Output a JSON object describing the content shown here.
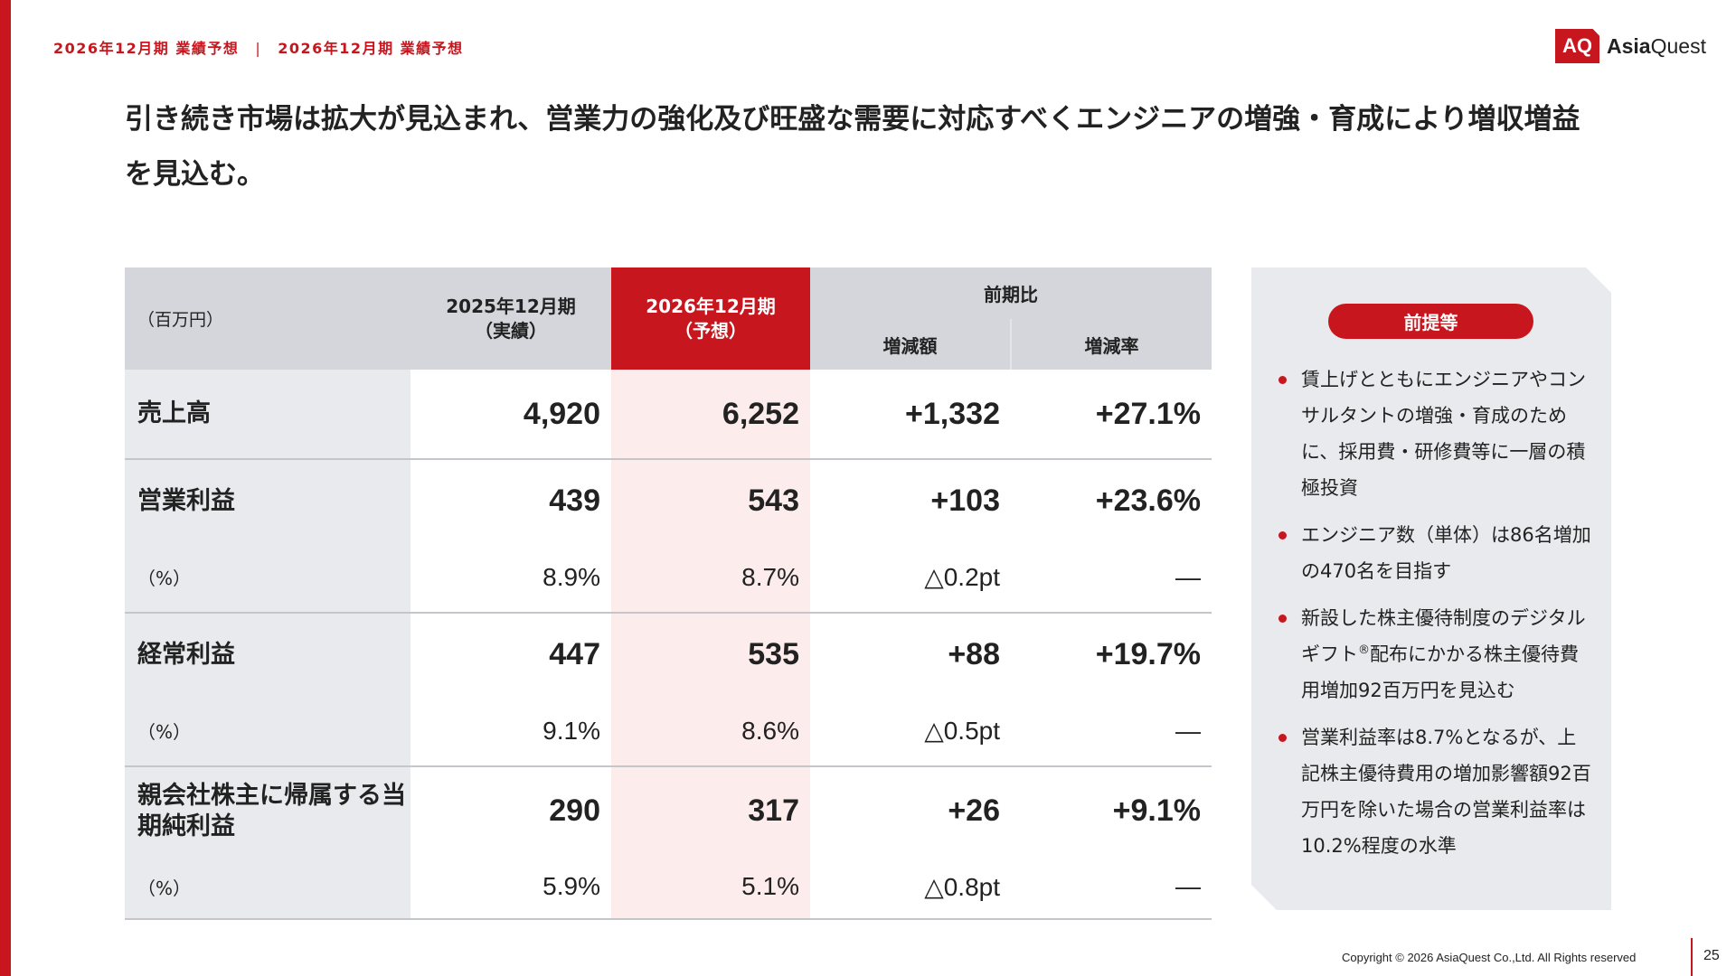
{
  "header": {
    "breadcrumb": [
      "2026年12月期 業績予想",
      "2026年12月期 業績予想"
    ],
    "logo": {
      "mark": "AQ",
      "name_bold": "Asia",
      "name_rest": "Quest"
    }
  },
  "headline": "引き続き市場は拡大が見込まれ、営業力の強化及び旺盛な需要に対応すべくエンジニアの増強・育成により増収増益を見込む。",
  "table": {
    "unit": "（百万円）",
    "columns": [
      {
        "title": "2025年12月期",
        "note": "（実績）"
      },
      {
        "title": "2026年12月期",
        "note": "（予想）"
      }
    ],
    "compare": {
      "title": "前期比",
      "columns": [
        "増減額",
        "増減率"
      ]
    },
    "rows": [
      {
        "label": "売上高",
        "values": [
          "4,920",
          "6,252",
          "+1,332",
          "+27.1%"
        ]
      },
      {
        "label": "営業利益",
        "values": [
          "439",
          "543",
          "+103",
          "+23.6%"
        ],
        "sub": {
          "label": "（%）",
          "values": [
            "8.9%",
            "8.7%",
            "△0.2pt",
            "―"
          ]
        }
      },
      {
        "label": "経常利益",
        "values": [
          "447",
          "535",
          "+88",
          "+19.7%"
        ],
        "sub": {
          "label": "（%）",
          "values": [
            "9.1%",
            "8.6%",
            "△0.5pt",
            "―"
          ]
        }
      },
      {
        "label": "親会社株主に帰属する当期純利益",
        "values": [
          "290",
          "317",
          "+26",
          "+9.1%"
        ],
        "sub": {
          "label": "（%）",
          "values": [
            "5.9%",
            "5.1%",
            "△0.8pt",
            "―"
          ]
        }
      }
    ]
  },
  "assumptions": {
    "title": "前提等",
    "bullets": [
      [
        "賃上げとともにエンジニアやコンサルタントの増強・育成のために、採用費・研修費等に一層の積極投資"
      ],
      [
        "エンジニア数（単体）は86名増加の470名を目指す"
      ],
      [
        "新設した株主優待制度のデジタルギフト",
        "®",
        "配布にかかる株主優待費用増加92百万円を見込む"
      ],
      [
        "営業利益率は8.7%となるが、上記株主優待費用の増加影響額92百万円を除いた場合の営業利益率は10.2%程度の水準"
      ]
    ]
  },
  "footer": {
    "copyright": "Copyright © 2026 AsiaQuest Co.,Ltd. All Rights reserved",
    "page": "25"
  }
}
